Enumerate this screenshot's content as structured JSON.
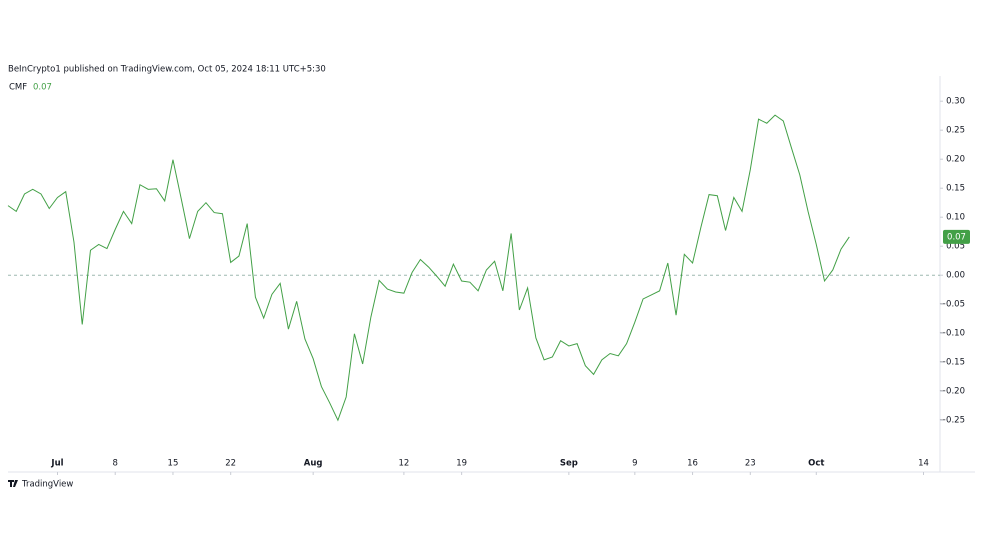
{
  "chart_data": {
    "type": "line",
    "subtitle": "BeInCrypto1 published on TradingView.com, Oct 05, 2024 18:11 UTC+5:30",
    "source": "TradingView",
    "x": [
      "2024-06-25",
      "2024-06-26",
      "2024-06-27",
      "2024-06-28",
      "2024-06-29",
      "2024-06-30",
      "2024-07-01",
      "2024-07-02",
      "2024-07-03",
      "2024-07-04",
      "2024-07-05",
      "2024-07-06",
      "2024-07-07",
      "2024-07-08",
      "2024-07-09",
      "2024-07-10",
      "2024-07-11",
      "2024-07-12",
      "2024-07-13",
      "2024-07-14",
      "2024-07-15",
      "2024-07-16",
      "2024-07-17",
      "2024-07-18",
      "2024-07-19",
      "2024-07-20",
      "2024-07-21",
      "2024-07-22",
      "2024-07-23",
      "2024-07-24",
      "2024-07-25",
      "2024-07-26",
      "2024-07-27",
      "2024-07-28",
      "2024-07-29",
      "2024-07-30",
      "2024-07-31",
      "2024-08-01",
      "2024-08-02",
      "2024-08-03",
      "2024-08-04",
      "2024-08-05",
      "2024-08-06",
      "2024-08-07",
      "2024-08-08",
      "2024-08-09",
      "2024-08-10",
      "2024-08-11",
      "2024-08-12",
      "2024-08-13",
      "2024-08-14",
      "2024-08-15",
      "2024-08-16",
      "2024-08-17",
      "2024-08-18",
      "2024-08-19",
      "2024-08-20",
      "2024-08-21",
      "2024-08-22",
      "2024-08-23",
      "2024-08-24",
      "2024-08-25",
      "2024-08-26",
      "2024-08-27",
      "2024-08-28",
      "2024-08-29",
      "2024-08-30",
      "2024-08-31",
      "2024-09-01",
      "2024-09-02",
      "2024-09-03",
      "2024-09-04",
      "2024-09-05",
      "2024-09-06",
      "2024-09-07",
      "2024-09-08",
      "2024-09-09",
      "2024-09-10",
      "2024-09-11",
      "2024-09-12",
      "2024-09-13",
      "2024-09-14",
      "2024-09-15",
      "2024-09-16",
      "2024-09-17",
      "2024-09-18",
      "2024-09-19",
      "2024-09-20",
      "2024-09-21",
      "2024-09-22",
      "2024-09-23",
      "2024-09-24",
      "2024-09-25",
      "2024-09-26",
      "2024-09-27",
      "2024-09-28",
      "2024-09-29",
      "2024-09-30",
      "2024-10-01",
      "2024-10-02",
      "2024-10-03",
      "2024-10-04",
      "2024-10-05"
    ],
    "series": [
      {
        "name": "CMF",
        "color": "#43a047",
        "last_value_label": "0.07",
        "values": [
          0.12,
          0.11,
          0.14,
          0.148,
          0.14,
          0.115,
          0.134,
          0.144,
          0.057,
          -0.085,
          0.043,
          0.053,
          0.046,
          0.079,
          0.11,
          0.089,
          0.156,
          0.148,
          0.149,
          0.128,
          0.199,
          0.132,
          0.063,
          0.11,
          0.125,
          0.108,
          0.106,
          0.022,
          0.033,
          0.089,
          -0.038,
          -0.074,
          -0.033,
          -0.014,
          -0.093,
          -0.045,
          -0.11,
          -0.144,
          -0.192,
          -0.22,
          -0.25,
          -0.21,
          -0.101,
          -0.153,
          -0.072,
          -0.009,
          -0.024,
          -0.029,
          -0.031,
          0.005,
          0.027,
          0.014,
          -0.002,
          -0.019,
          0.019,
          -0.01,
          -0.012,
          -0.027,
          0.009,
          0.024,
          -0.027,
          0.072,
          -0.06,
          -0.022,
          -0.108,
          -0.146,
          -0.141,
          -0.113,
          -0.122,
          -0.118,
          -0.156,
          -0.171,
          -0.146,
          -0.135,
          -0.139,
          -0.118,
          -0.081,
          -0.041,
          -0.034,
          -0.027,
          0.021,
          -0.069,
          0.036,
          0.021,
          0.082,
          0.139,
          0.137,
          0.077,
          0.134,
          0.11,
          0.182,
          0.269,
          0.262,
          0.276,
          0.266,
          0.219,
          0.173,
          0.11,
          0.053,
          -0.01,
          0.009,
          0.045,
          0.066
        ]
      }
    ],
    "xlim": [
      "2024-06-25",
      "2024-10-16"
    ],
    "xticks": [
      {
        "value": "2024-07-01",
        "label": "Jul"
      },
      {
        "value": "2024-07-08",
        "label": "8"
      },
      {
        "value": "2024-07-15",
        "label": "15"
      },
      {
        "value": "2024-07-22",
        "label": "22"
      },
      {
        "value": "2024-08-01",
        "label": "Aug"
      },
      {
        "value": "2024-08-12",
        "label": "12"
      },
      {
        "value": "2024-08-19",
        "label": "19"
      },
      {
        "value": "2024-09-01",
        "label": "Sep"
      },
      {
        "value": "2024-09-09",
        "label": "9"
      },
      {
        "value": "2024-09-16",
        "label": "16"
      },
      {
        "value": "2024-09-23",
        "label": "23"
      },
      {
        "value": "2024-10-01",
        "label": "Oct"
      },
      {
        "value": "2024-10-14",
        "label": "14"
      }
    ],
    "ylim": [
      -0.31,
      0.34
    ],
    "yticks": [
      {
        "value": 0.3,
        "label": "0.30"
      },
      0.25,
      {
        "value": 0.2,
        "label": "0.20"
      },
      0.15,
      {
        "value": 0.1,
        "label": "0.10"
      },
      0.05,
      {
        "value": 0,
        "label": "0.00"
      },
      {
        "value": -0.05,
        "label": "−0.05"
      },
      {
        "value": -0.1,
        "label": "−0.10"
      },
      {
        "value": -0.15,
        "label": "−0.15"
      },
      {
        "value": -0.2,
        "label": "−0.20"
      },
      {
        "value": -0.25,
        "label": "−0.25"
      }
    ],
    "zero_line": true,
    "grid": false
  }
}
